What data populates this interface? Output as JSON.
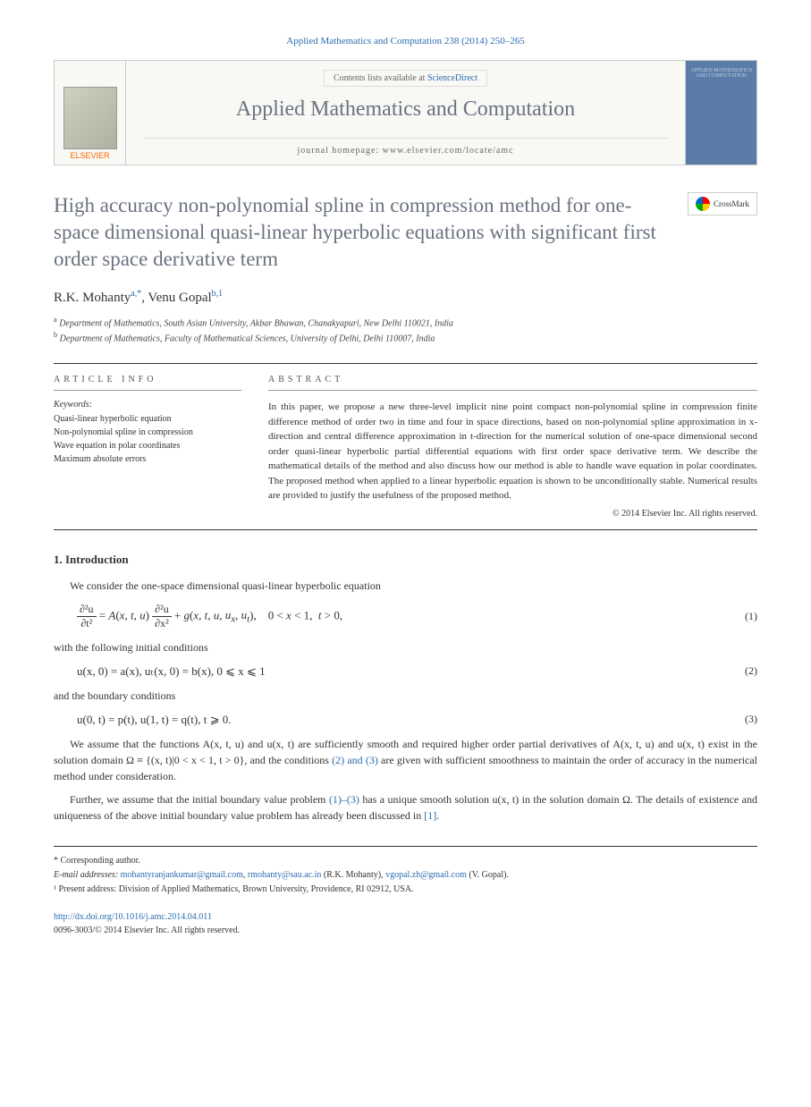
{
  "citation": "Applied Mathematics and Computation 238 (2014) 250–265",
  "masthead": {
    "elsevier": "ELSEVIER",
    "contents_prefix": "Contents lists available at ",
    "contents_link": "ScienceDirect",
    "journal": "Applied Mathematics and Computation",
    "homepage": "journal homepage: www.elsevier.com/locate/amc",
    "cover_text": "APPLIED MATHEMATICS AND COMPUTATION"
  },
  "crossmark": "CrossMark",
  "title": "High accuracy non-polynomial spline in compression method for one-space dimensional quasi-linear hyperbolic equations with significant first order space derivative term",
  "authors_html": "R.K. Mohanty",
  "author1_sup": "a,*",
  "author2": ", Venu Gopal",
  "author2_sup": "b,1",
  "affiliations": {
    "a": "Department of Mathematics, South Asian University, Akbar Bhawan, Chanakyapuri, New Delhi 110021, India",
    "b": "Department of Mathematics, Faculty of Mathematical Sciences, University of Delhi, Delhi 110007, India"
  },
  "info_heading": "ARTICLE INFO",
  "abstract_heading": "ABSTRACT",
  "keywords_label": "Keywords:",
  "keywords": [
    "Quasi-linear hyperbolic equation",
    "Non-polynomial spline in compression",
    "Wave equation in polar coordinates",
    "Maximum absolute errors"
  ],
  "abstract": "In this paper, we propose a new three-level implicit nine point compact non-polynomial spline in compression finite difference method of order two in time and four in space directions, based on non-polynomial spline approximation in x-direction and central difference approximation in t-direction for the numerical solution of one-space dimensional second order quasi-linear hyperbolic partial differential equations with first order space derivative term. We describe the mathematical details of the method and also discuss how our method is able to handle wave equation in polar coordinates. The proposed method when applied to a linear hyperbolic equation is shown to be unconditionally stable. Numerical results are provided to justify the usefulness of the proposed method.",
  "copyright": "© 2014 Elsevier Inc. All rights reserved.",
  "section1": "1. Introduction",
  "intro1": "We consider the one-space dimensional quasi-linear hyperbolic equation",
  "eq1_num": "(1)",
  "intro2": "with the following initial conditions",
  "eq2": "u(x, 0) = a(x),    uₜ(x, 0) = b(x),    0 ⩽ x ⩽ 1",
  "eq2_num": "(2)",
  "intro3": "and the boundary conditions",
  "eq3": "u(0, t) = p(t),    u(1, t) = q(t),    t ⩾ 0.",
  "eq3_num": "(3)",
  "para1_a": "We assume that the functions A(x, t, u) and u(x, t) are sufficiently smooth and required higher order partial derivatives of A(x, t, u) and u(x, t) exist in the solution domain Ω ≡ {(x, t)|0 < x < 1, t > 0}, and the conditions ",
  "para1_link": "(2) and (3)",
  "para1_b": " are given with sufficient smoothness to maintain the order of accuracy in the numerical method under consideration.",
  "para2_a": "Further, we assume that the initial boundary value problem ",
  "para2_link": "(1)–(3)",
  "para2_b": " has a unique smooth solution u(x, t) in the solution domain Ω. The details of existence and uniqueness of the above initial boundary value problem has already been discussed in ",
  "para2_ref": "[1]",
  "para2_c": ".",
  "footnotes": {
    "corr": "* Corresponding author.",
    "email_label": "E-mail addresses: ",
    "email1": "mohantyranjankumar@gmail.com",
    "email2": "rmohanty@sau.ac.in",
    "email_aff1": " (R.K. Mohanty), ",
    "email3": "vgopal.zh@gmail.com",
    "email_aff2": " (V. Gopal).",
    "present": "¹ Present address: Division of Applied Mathematics, Brown University, Providence, RI 02912, USA."
  },
  "doi": {
    "url": "http://dx.doi.org/10.1016/j.amc.2014.04.011",
    "issn": "0096-3003/© 2014 Elsevier Inc. All rights reserved."
  }
}
